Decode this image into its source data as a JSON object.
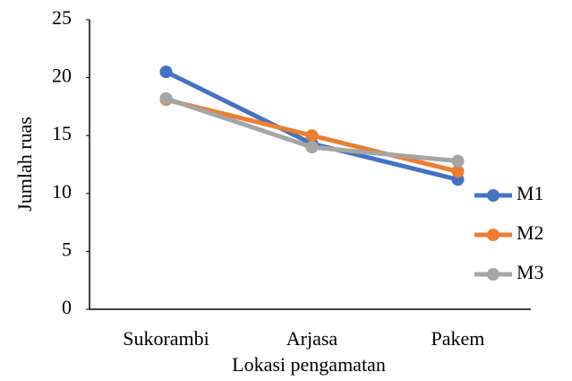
{
  "chart_data": {
    "type": "line",
    "categories": [
      "Sukorambi",
      "Arjasa",
      "Pakem"
    ],
    "series": [
      {
        "name": "M1",
        "color": "#4472c4",
        "values": [
          20.5,
          14.3,
          11.2
        ]
      },
      {
        "name": "M2",
        "color": "#ed7d31",
        "values": [
          18.1,
          15.0,
          11.9
        ]
      },
      {
        "name": "M3",
        "color": "#a5a5a5",
        "values": [
          18.2,
          14.0,
          12.8
        ]
      }
    ],
    "x_label": "Lokasi pengamatan",
    "y_label": "Jumlah ruas",
    "ylim": [
      0,
      25
    ],
    "yticks": [
      0,
      5,
      10,
      15,
      20,
      25
    ],
    "grid": false,
    "legend": "right"
  }
}
